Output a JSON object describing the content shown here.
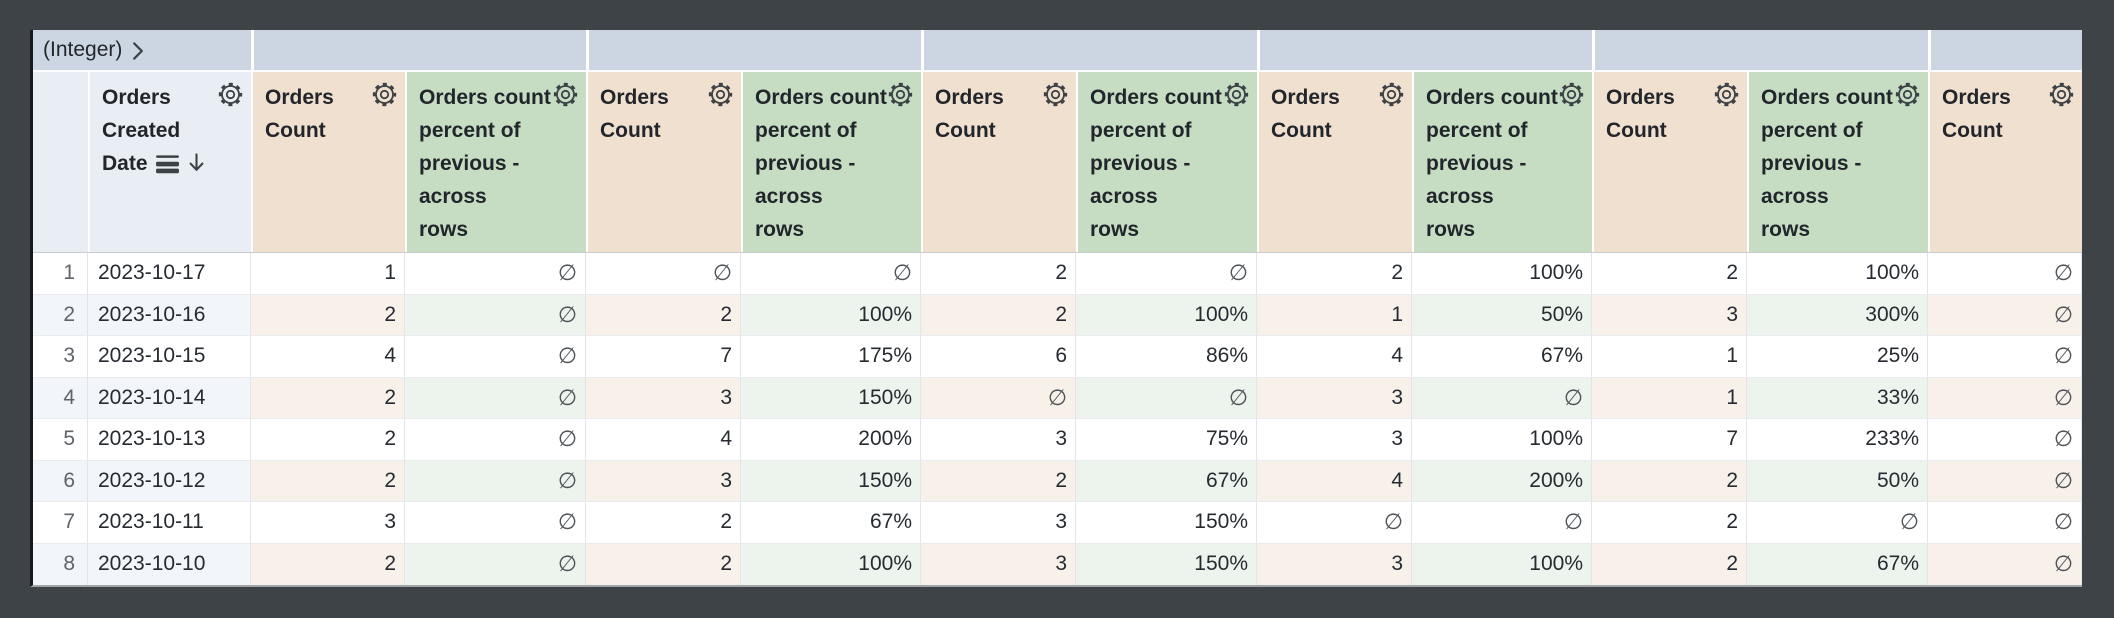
{
  "pivot": {
    "field_label": "(Integer)",
    "expand_icon": "chevron-right-icon",
    "segment_count": 7
  },
  "table": {
    "null_symbol": "∅",
    "sort": {
      "column": "Orders Created Date",
      "direction": "descending"
    },
    "columns": [
      {
        "name": "orders-created-date",
        "label": "Orders\nCreated\nDate",
        "kind": "dimension",
        "gear": true,
        "sorted": true
      },
      {
        "name": "orders-count-1",
        "label": "Orders\nCount",
        "kind": "measure",
        "gear": true
      },
      {
        "name": "orders-count-percent-of-previous-1",
        "label": "Orders count\npercent of\nprevious -\nacross\nrows",
        "kind": "table_calculation",
        "gear": true
      },
      {
        "name": "orders-count-2",
        "label": "Orders\nCount",
        "kind": "measure",
        "gear": true
      },
      {
        "name": "orders-count-percent-of-previous-2",
        "label": "Orders count\npercent of\nprevious -\nacross\nrows",
        "kind": "table_calculation",
        "gear": true
      },
      {
        "name": "orders-count-3",
        "label": "Orders\nCount",
        "kind": "measure",
        "gear": true
      },
      {
        "name": "orders-count-percent-of-previous-3",
        "label": "Orders count\npercent of\nprevious -\nacross\nrows",
        "kind": "table_calculation",
        "gear": true
      },
      {
        "name": "orders-count-4",
        "label": "Orders\nCount",
        "kind": "measure",
        "gear": true
      },
      {
        "name": "orders-count-percent-of-previous-4",
        "label": "Orders count\npercent of\nprevious -\nacross\nrows",
        "kind": "table_calculation",
        "gear": true
      },
      {
        "name": "orders-count-5",
        "label": "Orders\nCount",
        "kind": "measure",
        "gear": true
      },
      {
        "name": "orders-count-percent-of-previous-5",
        "label": "Orders count\npercent of\nprevious -\nacross\nrows",
        "kind": "table_calculation",
        "gear": true
      },
      {
        "name": "orders-count-6",
        "label": "Orders\nCount",
        "kind": "measure",
        "gear": true
      }
    ],
    "rows": [
      {
        "row_number": "1",
        "date": "2023-10-17",
        "values": [
          "1",
          "∅",
          "∅",
          "∅",
          "2",
          "∅",
          "2",
          "100%",
          "2",
          "100%",
          "∅"
        ]
      },
      {
        "row_number": "2",
        "date": "2023-10-16",
        "values": [
          "2",
          "∅",
          "2",
          "100%",
          "2",
          "100%",
          "1",
          "50%",
          "3",
          "300%",
          "∅"
        ]
      },
      {
        "row_number": "3",
        "date": "2023-10-15",
        "values": [
          "4",
          "∅",
          "7",
          "175%",
          "6",
          "86%",
          "4",
          "67%",
          "1",
          "25%",
          "∅"
        ]
      },
      {
        "row_number": "4",
        "date": "2023-10-14",
        "values": [
          "2",
          "∅",
          "3",
          "150%",
          "∅",
          "∅",
          "3",
          "∅",
          "1",
          "33%",
          "∅"
        ]
      },
      {
        "row_number": "5",
        "date": "2023-10-13",
        "values": [
          "2",
          "∅",
          "4",
          "200%",
          "3",
          "75%",
          "3",
          "100%",
          "7",
          "233%",
          "∅"
        ]
      },
      {
        "row_number": "6",
        "date": "2023-10-12",
        "values": [
          "2",
          "∅",
          "3",
          "150%",
          "2",
          "67%",
          "4",
          "200%",
          "2",
          "50%",
          "∅"
        ]
      },
      {
        "row_number": "7",
        "date": "2023-10-11",
        "values": [
          "3",
          "∅",
          "2",
          "67%",
          "3",
          "150%",
          "∅",
          "∅",
          "2",
          "∅",
          "∅"
        ]
      },
      {
        "row_number": "8",
        "date": "2023-10-10",
        "values": [
          "2",
          "∅",
          "2",
          "100%",
          "3",
          "150%",
          "3",
          "100%",
          "2",
          "67%",
          "∅"
        ]
      }
    ]
  },
  "colors": {
    "page_bg": "#3e4348",
    "band_bg": "#cbd6e2",
    "dim_header_bg": "#e9eef4",
    "measure_header_bg": "#f0e0d0",
    "calc_header_bg": "#c6ddc3",
    "dim_stripe": "#f2f6fa",
    "measure_stripe": "#f8f1ea",
    "calc_stripe": "#ecf4ed",
    "text": "#262b31",
    "header_text": "#22262b",
    "row_number_text": "#5f646a",
    "null_text": "#4d5257",
    "icon": "#3d4247",
    "card_left_border": "#17191c",
    "card_bottom_border": "#a2a5a8"
  }
}
